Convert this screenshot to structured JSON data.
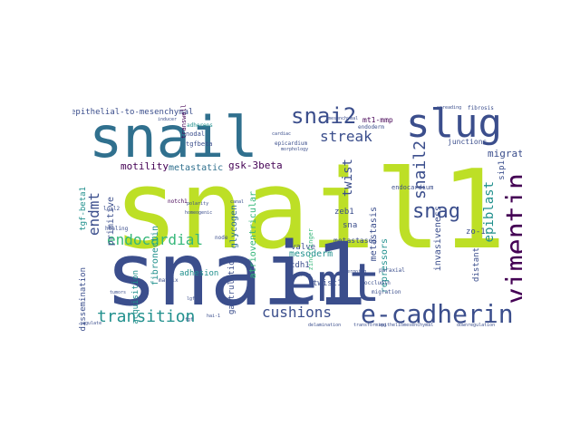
{
  "palette": {
    "navy": "#3b4e8c",
    "blue": "#30708e",
    "teal": "#21908d",
    "green": "#35b779",
    "lime": "#bddf26",
    "purple": "#46337e",
    "dark": "#440154"
  },
  "words": [
    {
      "text": "snail1",
      "size": 120,
      "color": "lime"
    },
    {
      "text": "snai1",
      "size": 96,
      "color": "navy"
    },
    {
      "text": "snail",
      "size": 62,
      "color": "blue"
    },
    {
      "text": "emt",
      "size": 58,
      "color": "navy"
    },
    {
      "text": "slug",
      "size": 44,
      "color": "navy"
    },
    {
      "text": "vimentin",
      "size": 30,
      "color": "dark"
    },
    {
      "text": "e-cadherin",
      "size": 28,
      "color": "navy"
    },
    {
      "text": "snai2",
      "size": 24,
      "color": "navy"
    },
    {
      "text": "snag",
      "size": 22,
      "color": "navy"
    },
    {
      "text": "transition",
      "size": 18,
      "color": "teal"
    },
    {
      "text": "endocardial",
      "size": 16,
      "color": "green"
    },
    {
      "text": "snail2",
      "size": 18,
      "color": "navy"
    },
    {
      "text": "cushions",
      "size": 16,
      "color": "navy"
    },
    {
      "text": "endmt",
      "size": 16,
      "color": "navy"
    },
    {
      "text": "streak",
      "size": 16,
      "color": "navy"
    },
    {
      "text": "epiblast",
      "size": 14,
      "color": "teal"
    },
    {
      "text": "twist",
      "size": 14,
      "color": "navy"
    },
    {
      "text": "gsk-3beta",
      "size": 11,
      "color": "dark"
    },
    {
      "text": "motility",
      "size": 11,
      "color": "dark"
    },
    {
      "text": "migratory",
      "size": 11,
      "color": "navy"
    },
    {
      "text": "metastatic",
      "size": 10,
      "color": "blue"
    },
    {
      "text": "primitive",
      "size": 10,
      "color": "navy"
    },
    {
      "text": "glycogen",
      "size": 10,
      "color": "blue"
    },
    {
      "text": "fibronectin",
      "size": 10,
      "color": "teal"
    },
    {
      "text": "atrioventricular",
      "size": 10,
      "color": "green"
    },
    {
      "text": "mesoderm",
      "size": 10,
      "color": "teal"
    },
    {
      "text": "repressors",
      "size": 10,
      "color": "teal"
    },
    {
      "text": "metastasis",
      "size": 10,
      "color": "navy"
    },
    {
      "text": "invasiveness",
      "size": 10,
      "color": "navy"
    },
    {
      "text": "epithelial-to-mesenchymal",
      "size": 9,
      "color": "navy"
    },
    {
      "text": "tgf-beta1",
      "size": 9,
      "color": "teal"
    },
    {
      "text": "dissemination",
      "size": 9,
      "color": "navy"
    },
    {
      "text": "acquisition",
      "size": 9,
      "color": "teal"
    },
    {
      "text": "adhesion",
      "size": 9,
      "color": "teal"
    },
    {
      "text": "gastrulation",
      "size": 9,
      "color": "navy"
    },
    {
      "text": "valve",
      "size": 9,
      "color": "navy"
    },
    {
      "text": "cdh1",
      "size": 9,
      "color": "navy"
    },
    {
      "text": "twist1",
      "size": 9,
      "color": "navy"
    },
    {
      "text": "zeb1",
      "size": 9,
      "color": "navy"
    },
    {
      "text": "distant",
      "size": 9,
      "color": "navy"
    },
    {
      "text": "zo-1",
      "size": 9,
      "color": "navy"
    },
    {
      "text": "sip1",
      "size": 9,
      "color": "navy"
    },
    {
      "text": "sna",
      "size": 9,
      "color": "navy"
    },
    {
      "text": "metastases",
      "size": 8,
      "color": "navy"
    },
    {
      "text": "mt1-mmp",
      "size": 8,
      "color": "dark"
    },
    {
      "text": "transwell",
      "size": 7,
      "color": "dark"
    },
    {
      "text": "tgfbeta",
      "size": 7,
      "color": "navy"
    },
    {
      "text": "nodal",
      "size": 7,
      "color": "navy"
    },
    {
      "text": "adherens",
      "size": 6,
      "color": "teal"
    },
    {
      "text": "junctions",
      "size": 8,
      "color": "navy"
    },
    {
      "text": "endoderm",
      "size": 6,
      "color": "navy"
    },
    {
      "text": "endocardium",
      "size": 7,
      "color": "navy"
    },
    {
      "text": "epicardium",
      "size": 6,
      "color": "navy"
    },
    {
      "text": "zinc-finger",
      "size": 7,
      "color": "green"
    },
    {
      "text": "notch1",
      "size": 6,
      "color": "dark"
    },
    {
      "text": "loxl2",
      "size": 6,
      "color": "navy"
    },
    {
      "text": "healing",
      "size": 6,
      "color": "navy"
    },
    {
      "text": "matrix",
      "size": 6,
      "color": "navy"
    },
    {
      "text": "node",
      "size": 6,
      "color": "navy"
    },
    {
      "text": "occludin",
      "size": 6,
      "color": "navy"
    },
    {
      "text": "migration",
      "size": 6,
      "color": "navy"
    },
    {
      "text": "paraxial",
      "size": 6,
      "color": "navy"
    },
    {
      "text": "fibrosis",
      "size": 6,
      "color": "navy"
    },
    {
      "text": "spreading",
      "size": 5,
      "color": "navy"
    },
    {
      "text": "delamination",
      "size": 5,
      "color": "navy"
    },
    {
      "text": "epitheliomesenchymal",
      "size": 5,
      "color": "navy"
    },
    {
      "text": "downregulation",
      "size": 5,
      "color": "navy"
    },
    {
      "text": "transforming",
      "size": 5,
      "color": "navy"
    },
    {
      "text": "polarity",
      "size": 5,
      "color": "navy"
    },
    {
      "text": "canal",
      "size": 5,
      "color": "navy"
    },
    {
      "text": "homeogenic",
      "size": 5,
      "color": "navy"
    },
    {
      "text": "cardiac",
      "size": 5,
      "color": "navy"
    },
    {
      "text": "undergo",
      "size": 5,
      "color": "navy"
    },
    {
      "text": "undergoing",
      "size": 5,
      "color": "navy"
    },
    {
      "text": "inducer",
      "size": 5,
      "color": "navy"
    },
    {
      "text": "tumors",
      "size": 5,
      "color": "navy"
    },
    {
      "text": "lgf",
      "size": 5,
      "color": "navy"
    },
    {
      "text": "hai-1",
      "size": 5,
      "color": "navy"
    },
    {
      "text": "regulate",
      "size": 5,
      "color": "navy"
    },
    {
      "text": "morphology",
      "size": 5,
      "color": "navy"
    },
    {
      "text": "mesenchymal",
      "size": 5,
      "color": "navy"
    },
    {
      "text": "fgf",
      "size": 5,
      "color": "navy"
    }
  ]
}
